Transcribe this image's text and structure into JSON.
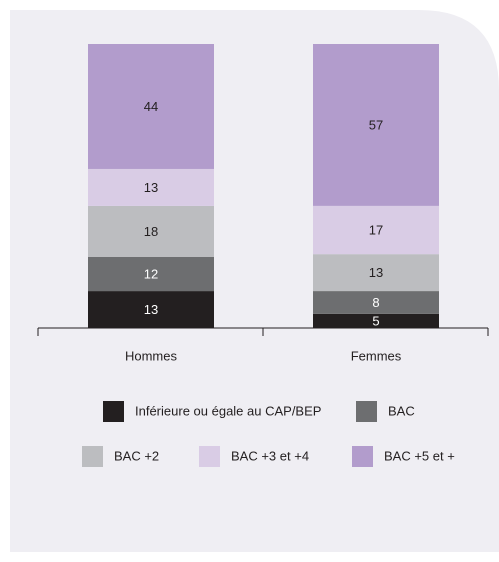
{
  "chart_data": {
    "type": "stacked-bar",
    "categories": [
      "Hommes",
      "Femmes"
    ],
    "series": [
      {
        "name": "Inférieure ou égale au CAP/BEP",
        "color": "#231f20",
        "values": [
          13,
          5
        ]
      },
      {
        "name": "BAC",
        "color": "#6d6e70",
        "values": [
          12,
          8
        ]
      },
      {
        "name": "BAC +2",
        "color": "#bcbdc0",
        "values": [
          18,
          13
        ]
      },
      {
        "name": "BAC +3 et +4",
        "color": "#d9cce5",
        "values": [
          13,
          17
        ]
      },
      {
        "name": "BAC +5 et +",
        "color": "#b29ccc",
        "values": [
          44,
          57
        ]
      }
    ]
  }
}
